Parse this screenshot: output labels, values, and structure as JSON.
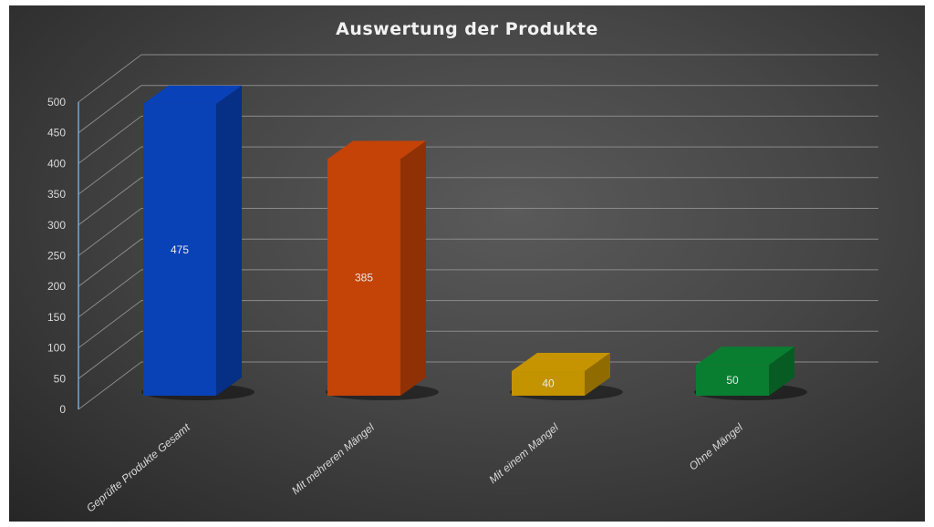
{
  "chart_data": {
    "type": "bar",
    "title": "Auswertung der Produkte",
    "categories": [
      "Geprüfte Produkte Gesamt",
      "Mit mehreren Mängel",
      "Mit einem Mangel",
      "Ohne Mängel"
    ],
    "values": [
      475,
      385,
      40,
      50
    ],
    "data_labels": [
      "475",
      "385",
      "40",
      "50"
    ],
    "colors": [
      "#0a4fe0",
      "#f05208",
      "#f0b400",
      "#0b9a3a"
    ],
    "yticks": [
      "0",
      "50",
      "100",
      "150",
      "200",
      "250",
      "300",
      "350",
      "400",
      "450",
      "500"
    ],
    "ylim": [
      0,
      500
    ],
    "xlabel": "",
    "ylabel": "",
    "grid": true,
    "style": "3d-column"
  }
}
